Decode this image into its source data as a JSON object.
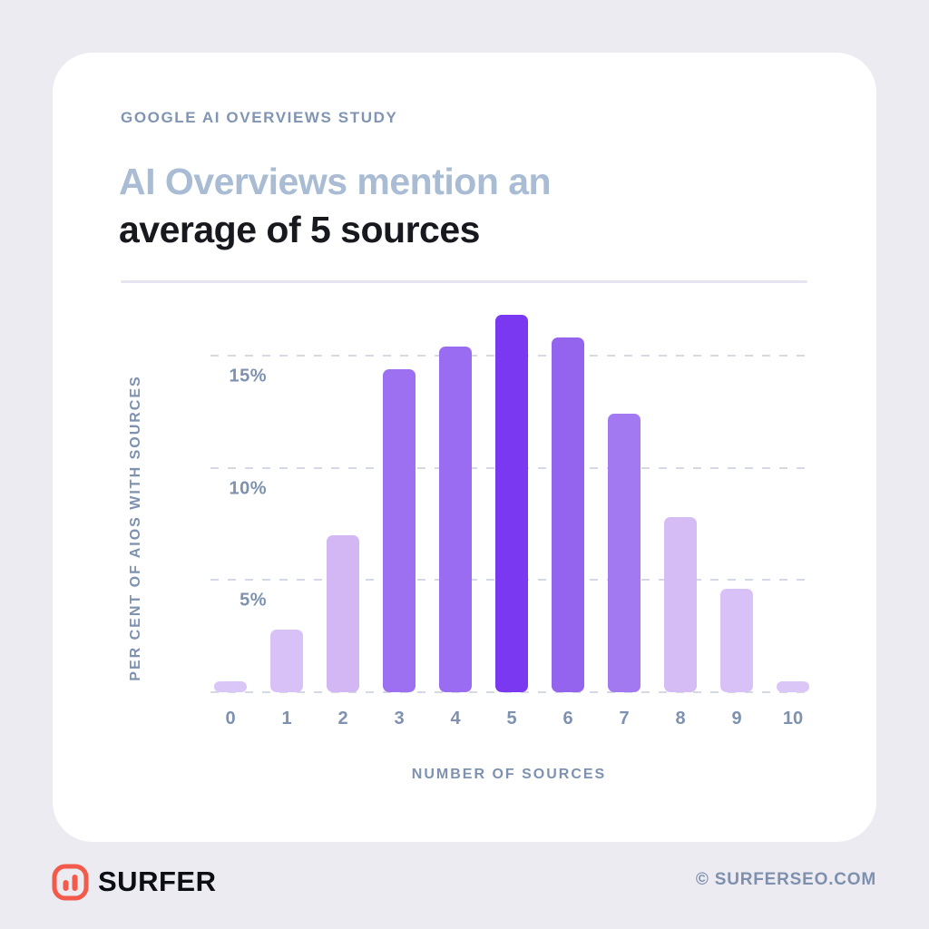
{
  "header": {
    "eyebrow": "GOOGLE AI OVERVIEWS STUDY",
    "title_line1": "AI Overviews mention an",
    "title_line2": "average of 5 sources"
  },
  "chart_data": {
    "type": "bar",
    "title": "AI Overviews mention an average of 5 sources",
    "xlabel": "NUMBER OF SOURCES",
    "ylabel": "PER CENT OF AIOS WITH SOURCES",
    "categories": [
      "0",
      "1",
      "2",
      "3",
      "4",
      "5",
      "6",
      "7",
      "8",
      "9",
      "10"
    ],
    "values": [
      0.5,
      2.8,
      7.0,
      14.4,
      15.4,
      16.8,
      15.8,
      12.4,
      7.8,
      4.6,
      0.5
    ],
    "bar_colors": [
      "#dbc6f8",
      "#d8c1f6",
      "#d3b7f4",
      "#9d70f1",
      "#996cf1",
      "#7a39f0",
      "#9564ef",
      "#a379f1",
      "#d5bcf5",
      "#d8c1f6",
      "#dbc6f8"
    ],
    "yticks": [
      {
        "label": "5%",
        "value": 5
      },
      {
        "label": "10%",
        "value": 10
      },
      {
        "label": "15%",
        "value": 15
      }
    ],
    "ylim": [
      0,
      17.1
    ],
    "grid": "dashed-horizontal",
    "legend": "none"
  },
  "footer": {
    "brand": "SURFER",
    "credit": "© SURFERSEO.COM"
  },
  "colors": {
    "page_background": "#ebebf1",
    "card_background": "#ffffff",
    "eyebrow_text": "#8094b3",
    "title_muted": "#a9bcd3",
    "title_dark": "#17191f",
    "axis_text": "#7e92b0",
    "gridline": "#d5d9e6",
    "divider": "#e6e4f0",
    "accent_bar": "#7a39f0",
    "logo_coral": "#f25a4b",
    "brand_text": "#0c0e13"
  }
}
